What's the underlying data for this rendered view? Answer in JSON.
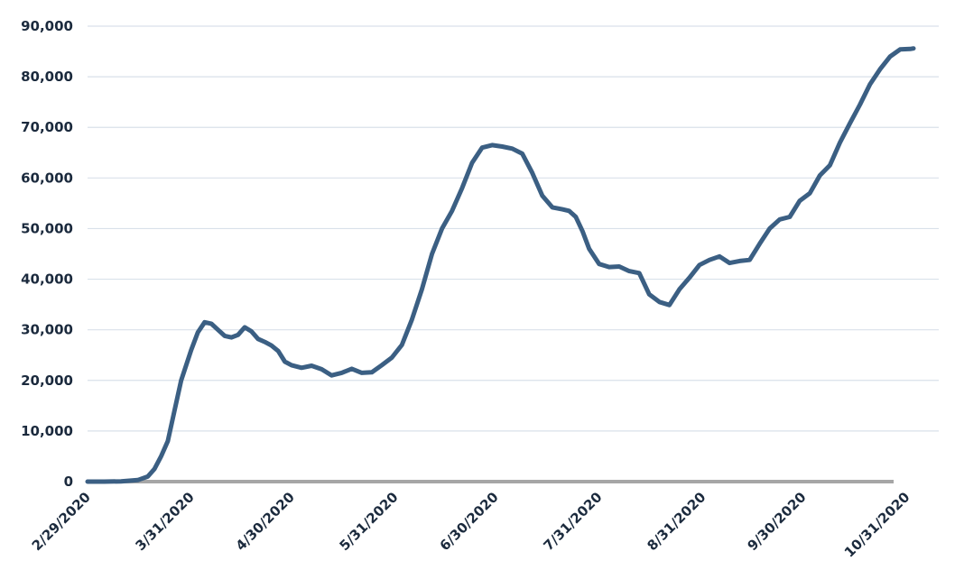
{
  "chart_data": {
    "type": "line",
    "title": "",
    "xlabel": "",
    "ylabel": "",
    "ylim": [
      0,
      90000
    ],
    "grid": true,
    "legend": "none",
    "y_ticks": [
      "0",
      "10,000",
      "20,000",
      "30,000",
      "40,000",
      "50,000",
      "60,000",
      "70,000",
      "80,000",
      "90,000"
    ],
    "x_ticks": [
      "2/29/2020",
      "3/31/2020",
      "4/30/2020",
      "5/31/2020",
      "6/30/2020",
      "7/31/2020",
      "8/31/2020",
      "9/30/2020",
      "10/31/2020"
    ],
    "colors": {
      "line": "#3b5f83",
      "grid": "#d9e1ea",
      "baseline": "#a6a6a6",
      "text": "#1b2a3d"
    },
    "series": [
      {
        "x": [
          "2/29/2020",
          "3/5/2020",
          "3/10/2020",
          "3/15/2020",
          "3/18/2020",
          "3/20/2020",
          "3/22/2020",
          "3/24/2020",
          "3/26/2020",
          "3/28/2020",
          "3/31/2020",
          "4/2/2020",
          "4/4/2020",
          "4/6/2020",
          "4/8/2020",
          "4/10/2020",
          "4/12/2020",
          "4/14/2020",
          "4/16/2020",
          "4/18/2020",
          "4/20/2020",
          "4/22/2020",
          "4/24/2020",
          "4/26/2020",
          "4/28/2020",
          "4/30/2020",
          "5/3/2020",
          "5/6/2020",
          "5/9/2020",
          "5/12/2020",
          "5/15/2020",
          "5/18/2020",
          "5/21/2020",
          "5/24/2020",
          "5/27/2020",
          "5/30/2020",
          "6/2/2020",
          "6/5/2020",
          "6/8/2020",
          "6/11/2020",
          "6/14/2020",
          "6/17/2020",
          "6/20/2020",
          "6/23/2020",
          "6/26/2020",
          "6/29/2020",
          "7/2/2020",
          "7/5/2020",
          "7/8/2020",
          "7/11/2020",
          "7/14/2020",
          "7/17/2020",
          "7/20/2020",
          "7/22/2020",
          "7/24/2020",
          "7/26/2020",
          "7/28/2020",
          "7/31/2020",
          "8/3/2020",
          "8/6/2020",
          "8/9/2020",
          "8/12/2020",
          "8/15/2020",
          "8/18/2020",
          "8/21/2020",
          "8/24/2020",
          "8/27/2020",
          "8/30/2020",
          "9/2/2020",
          "9/5/2020",
          "9/8/2020",
          "9/11/2020",
          "9/14/2020",
          "9/17/2020",
          "9/20/2020",
          "9/23/2020",
          "9/26/2020",
          "9/29/2020",
          "10/2/2020",
          "10/5/2020",
          "10/8/2020",
          "10/11/2020",
          "10/14/2020",
          "10/17/2020",
          "10/20/2020",
          "10/23/2020",
          "10/26/2020",
          "10/29/2020",
          "11/1/2020",
          "11/2/2020"
        ],
        "values": [
          0,
          0,
          50,
          300,
          1000,
          2500,
          5000,
          8000,
          14000,
          20000,
          26000,
          29500,
          31500,
          31200,
          30000,
          28800,
          28500,
          29000,
          30500,
          29700,
          28200,
          27600,
          26900,
          25800,
          23700,
          23000,
          22500,
          22900,
          22200,
          21000,
          21500,
          22300,
          21500,
          21600,
          23000,
          24500,
          27000,
          32000,
          38000,
          45000,
          50000,
          53500,
          58000,
          63000,
          66000,
          66500,
          66200,
          65800,
          64800,
          61000,
          56500,
          54200,
          53800,
          53500,
          52300,
          49500,
          46000,
          43000,
          42400,
          42500,
          41600,
          41200,
          37000,
          35500,
          34900,
          38000,
          40300,
          42800,
          43800,
          44500,
          43200,
          43600,
          43800,
          47000,
          50000,
          51800,
          52300,
          55500,
          57000,
          60500,
          62500,
          67000,
          70800,
          74500,
          78500,
          81500,
          84000,
          85400,
          85500,
          85600
        ]
      }
    ]
  }
}
